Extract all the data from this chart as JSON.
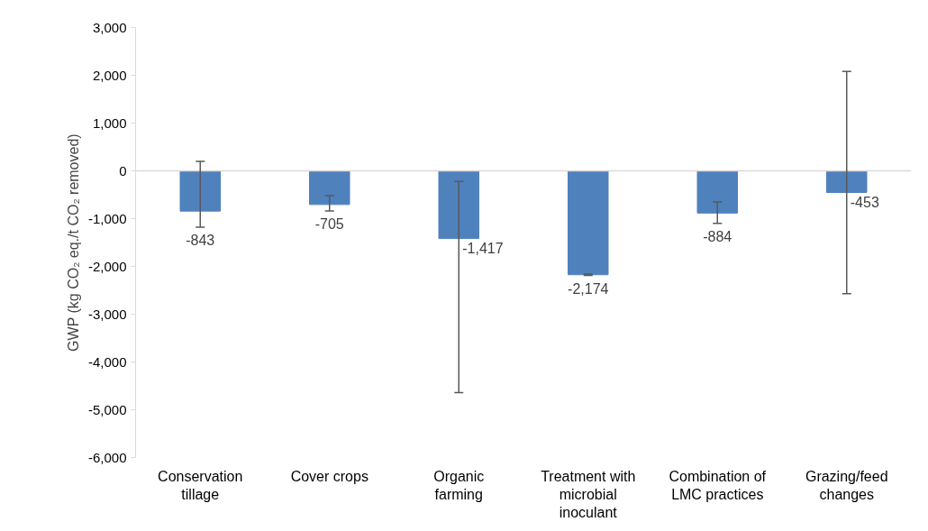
{
  "chart_data": {
    "type": "bar",
    "ylabel": "GWP (kg CO₂ eq./t CO₂ removed)",
    "categories": [
      "Conservation tillage",
      "Cover crops",
      "Organic farming",
      "Treatment with microbial inoculant",
      "Combination of LMC practices",
      "Grazing/feed changes"
    ],
    "values": [
      -843,
      -705,
      -1417,
      -2174,
      -884,
      -453
    ],
    "errors": [
      [
        -1180,
        200
      ],
      [
        -840,
        -520
      ],
      [
        -4640,
        -220
      ],
      [
        -2190,
        -2160
      ],
      [
        -1100,
        -650
      ],
      [
        -2570,
        2080
      ]
    ],
    "color": "#4f81bd",
    "value_labels": [
      "-843",
      "-705",
      "-1,417",
      "-2,174",
      "-884",
      "-453"
    ],
    "ref_lines": [
      {
        "axis": "y",
        "value": 0,
        "color": "#d9d9d9"
      }
    ],
    "ylim": [
      -6000,
      3000
    ],
    "yticks": [
      {
        "value": -6000,
        "label": "-6,000"
      },
      {
        "value": -5000,
        "label": "-5,000"
      },
      {
        "value": -4000,
        "label": "-4,000"
      },
      {
        "value": -3000,
        "label": "-3,000"
      },
      {
        "value": -2000,
        "label": "-2,000"
      },
      {
        "value": -1000,
        "label": "-1,000"
      },
      0,
      {
        "value": 1000,
        "label": "1,000"
      },
      {
        "value": 2000,
        "label": "2,000"
      },
      {
        "value": 3000,
        "label": "3,000"
      }
    ],
    "grid": false
  }
}
